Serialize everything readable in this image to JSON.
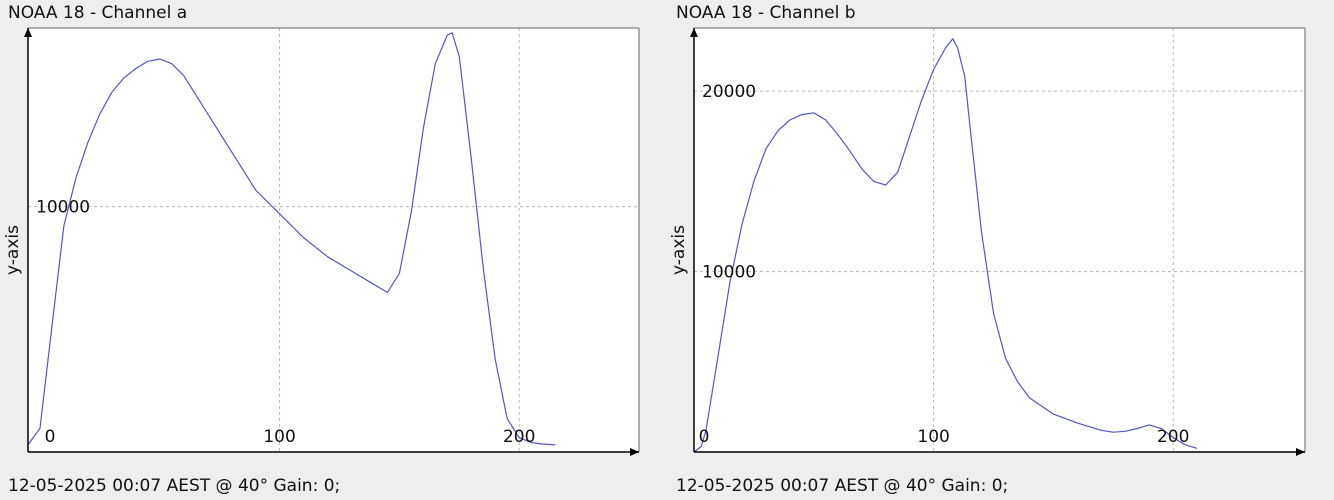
{
  "charts": [
    {
      "title": "NOAA 18 - Channel a",
      "footer": "12-05-2025 00:07 AEST @ 40° Gain: 0;",
      "chart_data": {
        "type": "line",
        "title": "NOAA 18 - Channel a",
        "xlabel": "",
        "ylabel": "y-axis",
        "xlim": [
          -5,
          250
        ],
        "ylim": [
          -300,
          17500
        ],
        "grid": true,
        "color": "#5555cc",
        "x_ticks": [
          0,
          100,
          200
        ],
        "y_ticks": [
          10000
        ],
        "series": [
          {
            "x": [
              -5,
              0,
              5,
              10,
              15,
              20,
              25,
              30,
              35,
              40,
              45,
              50,
              55,
              60,
              70,
              80,
              90,
              100,
              110,
              120,
              130,
              140,
              145,
              150,
              155,
              160,
              165,
              170,
              172,
              175,
              180,
              185,
              190,
              195,
              200,
              205,
              210,
              215
            ],
            "y": [
              0,
              700,
              5000,
              9200,
              11200,
              12700,
              13900,
              14800,
              15400,
              15800,
              16100,
              16200,
              16000,
              15500,
              13900,
              12300,
              10700,
              9700,
              8700,
              7900,
              7300,
              6700,
              6400,
              7200,
              9800,
              13300,
              16000,
              17200,
              17300,
              16300,
              12000,
              7400,
              3600,
              1100,
              300,
              100,
              30,
              0
            ]
          }
        ]
      }
    },
    {
      "title": "NOAA 18 - Channel b",
      "footer": "12-05-2025 00:07 AEST @ 40° Gain: 0;",
      "chart_data": {
        "type": "line",
        "title": "NOAA 18 - Channel b",
        "xlabel": "",
        "ylabel": "y-axis",
        "xlim": [
          0,
          255
        ],
        "ylim": [
          0,
          23500
        ],
        "grid": true,
        "color": "#5555cc",
        "x_ticks": [
          0,
          100,
          200
        ],
        "y_ticks": [
          10000,
          20000
        ],
        "series": [
          {
            "x": [
              0,
              3,
              5,
              10,
              15,
              20,
              25,
              30,
              35,
              40,
              45,
              50,
              55,
              60,
              65,
              70,
              75,
              80,
              85,
              90,
              95,
              100,
              105,
              108,
              110,
              113,
              115,
              120,
              125,
              130,
              135,
              140,
              150,
              160,
              170,
              175,
              180,
              185,
              190,
              195,
              200,
              205,
              210
            ],
            "y": [
              0,
              300,
              1200,
              5300,
              9400,
              12600,
              15000,
              16800,
              17800,
              18400,
              18700,
              18800,
              18400,
              17600,
              16700,
              15700,
              15000,
              14800,
              15500,
              17500,
              19500,
              21200,
              22400,
              22900,
              22400,
              20800,
              18300,
              12200,
              7700,
              5200,
              3900,
              3000,
              2100,
              1600,
              1200,
              1100,
              1150,
              1300,
              1500,
              1300,
              800,
              400,
              200
            ]
          }
        ]
      }
    }
  ]
}
